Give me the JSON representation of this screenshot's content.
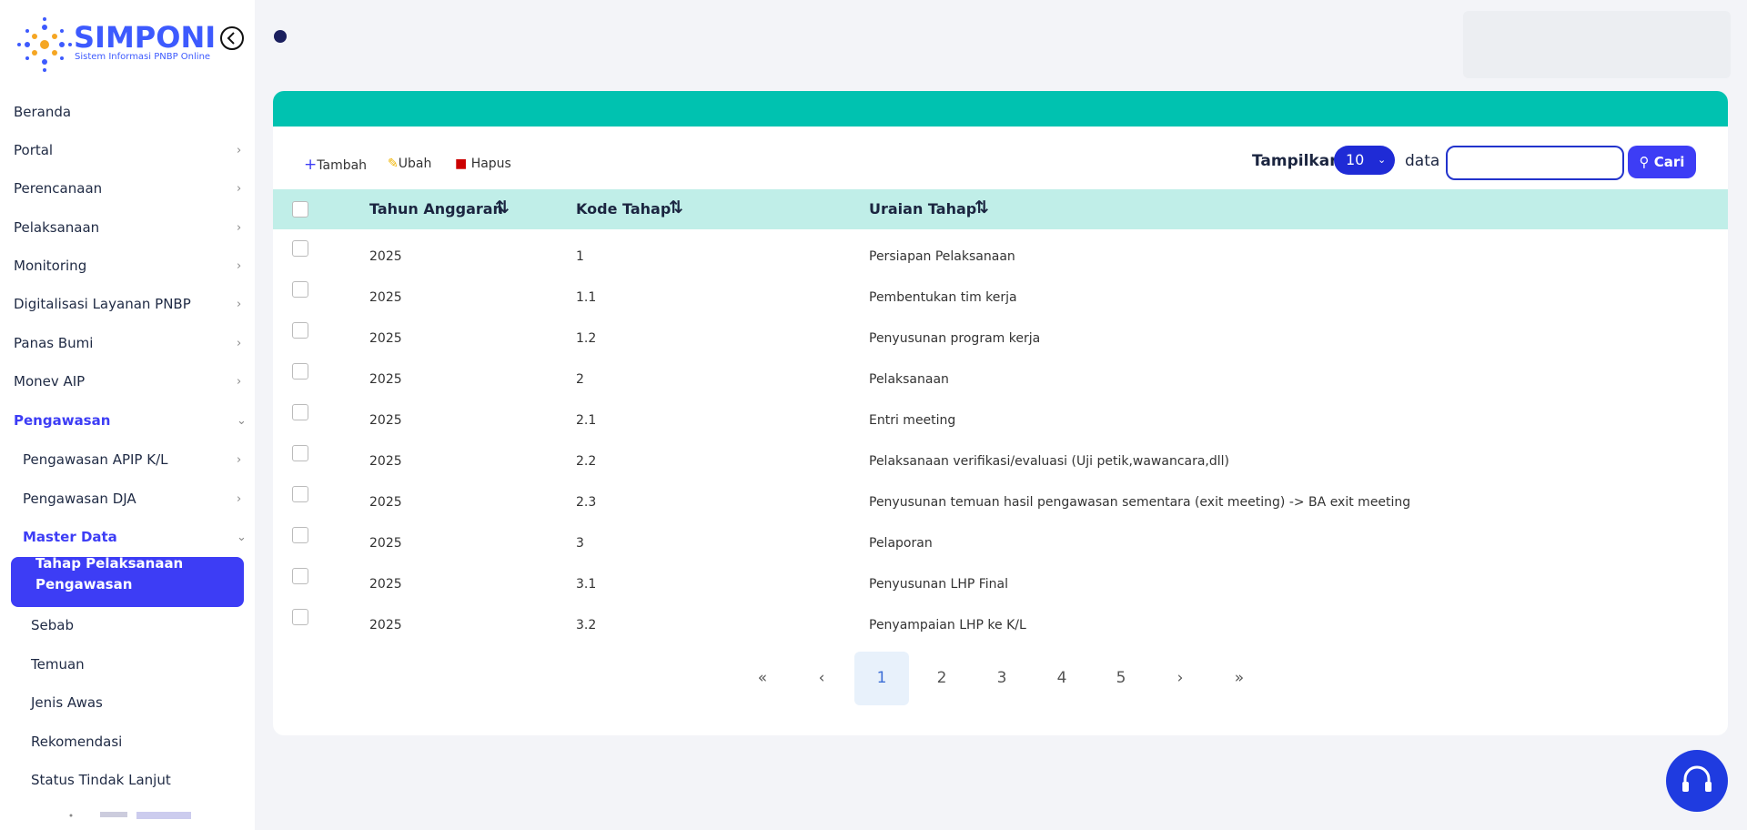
{
  "logo": {
    "title": "SIMPONI",
    "subtitle": "Sistem Informasi PNBP Online"
  },
  "menu": [
    {
      "label": "Beranda"
    },
    {
      "label": "Portal"
    },
    {
      "label": "Perencanaan"
    },
    {
      "label": "Pelaksanaan"
    },
    {
      "label": "Monitoring"
    },
    {
      "label": "Digitalisasi Layanan PNBP"
    },
    {
      "label": "Panas Bumi"
    },
    {
      "label": "Monev AIP"
    },
    {
      "label": "Pengawasan"
    },
    {
      "label": "Pengawasan APIP K/L"
    },
    {
      "label": "Pengawasan DJA"
    },
    {
      "label": "Master Data"
    },
    {
      "label": "Tahap Pelaksanaan Pengawasan"
    },
    {
      "label": "Sebab"
    },
    {
      "label": "Temuan"
    },
    {
      "label": "Jenis Awas"
    },
    {
      "label": "Rekomendasi"
    },
    {
      "label": "Status Tindak Lanjut"
    }
  ],
  "toolbar": {
    "add": "Tambah",
    "edit": "Ubah",
    "delete": "Hapus",
    "show": "Tampilkan",
    "page_size": "10",
    "data": "data",
    "search": "Cari"
  },
  "table": {
    "headers": [
      "Tahun Anggaran",
      "Kode Tahap",
      "Uraian Tahap"
    ],
    "rows": [
      [
        "2025",
        "1",
        "Persiapan Pelaksanaan"
      ],
      [
        "2025",
        "1.1",
        "Pembentukan tim kerja"
      ],
      [
        "2025",
        "1.2",
        "Penyusunan program kerja"
      ],
      [
        "2025",
        "2",
        "Pelaksanaan"
      ],
      [
        "2025",
        "2.1",
        "Entri meeting"
      ],
      [
        "2025",
        "2.2",
        "Pelaksanaan verifikasi/evaluasi (Uji petik,wawancara,dll)"
      ],
      [
        "2025",
        "2.3",
        "Penyusunan temuan hasil pengawasan sementara (exit meeting) -> BA exit meeting"
      ],
      [
        "2025",
        "3",
        "Pelaporan"
      ],
      [
        "2025",
        "3.1",
        "Penyusunan LHP Final"
      ],
      [
        "2025",
        "3.2",
        "Penyampaian LHP ke K/L"
      ]
    ]
  },
  "pagination": [
    "«",
    "‹",
    "1",
    "2",
    "3",
    "4",
    "5",
    "›",
    "»"
  ]
}
